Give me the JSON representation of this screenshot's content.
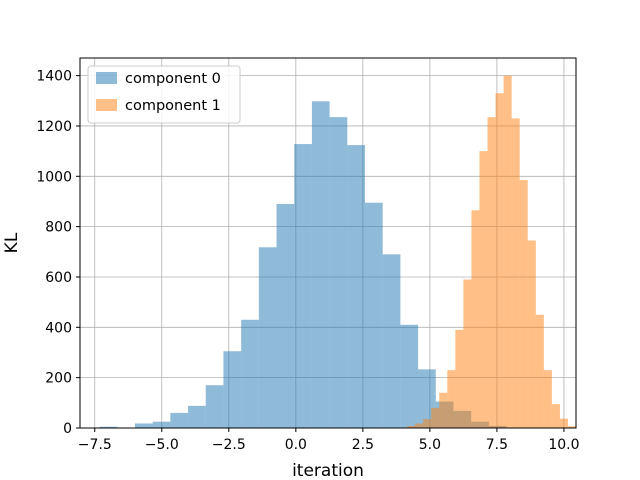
{
  "chart_data": {
    "type": "histogram",
    "title": "",
    "xlabel": "iteration",
    "ylabel": "KL",
    "xlim": [
      -8.05,
      10.45
    ],
    "ylim": [
      0,
      1470
    ],
    "xticks": [
      -7.5,
      -5.0,
      -2.5,
      0.0,
      2.5,
      5.0,
      7.5,
      10.0
    ],
    "xtick_labels": [
      "−7.5",
      "−5.0",
      "−2.5",
      "0.0",
      "2.5",
      "5.0",
      "7.5",
      "10.0"
    ],
    "yticks": [
      0,
      200,
      400,
      600,
      800,
      1000,
      1200,
      1400
    ],
    "ytick_labels": [
      "0",
      "200",
      "400",
      "600",
      "800",
      "1000",
      "1200",
      "1400"
    ],
    "grid": true,
    "legend_position": "upper-left",
    "series": [
      {
        "name": "component 0",
        "color": "#1f77b4",
        "alpha": 0.5,
        "bin_start": -7.32,
        "bin_width": 0.66,
        "values": [
          5,
          2,
          18,
          25,
          60,
          88,
          170,
          305,
          430,
          718,
          890,
          1128,
          1298,
          1235,
          1124,
          895,
          690,
          410,
          233,
          105,
          68,
          25,
          8
        ]
      },
      {
        "name": "component 1",
        "color": "#ff7f0e",
        "alpha": 0.5,
        "bin_start": 4.15,
        "bin_width": 0.3,
        "values": [
          8,
          18,
          35,
          80,
          140,
          230,
          390,
          590,
          865,
          1100,
          1235,
          1330,
          1400,
          1230,
          985,
          745,
          450,
          230,
          95,
          37,
          7
        ]
      }
    ]
  }
}
